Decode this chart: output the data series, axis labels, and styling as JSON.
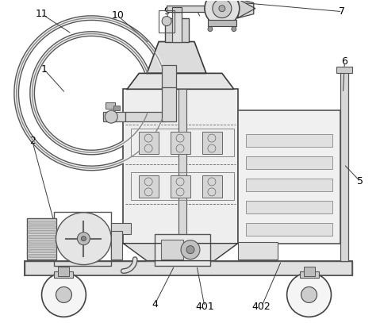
{
  "background_color": "#ffffff",
  "line_color": "#3a3a3a",
  "label_color": "#000000",
  "figsize": [
    4.79,
    4.07
  ],
  "dpi": 100
}
